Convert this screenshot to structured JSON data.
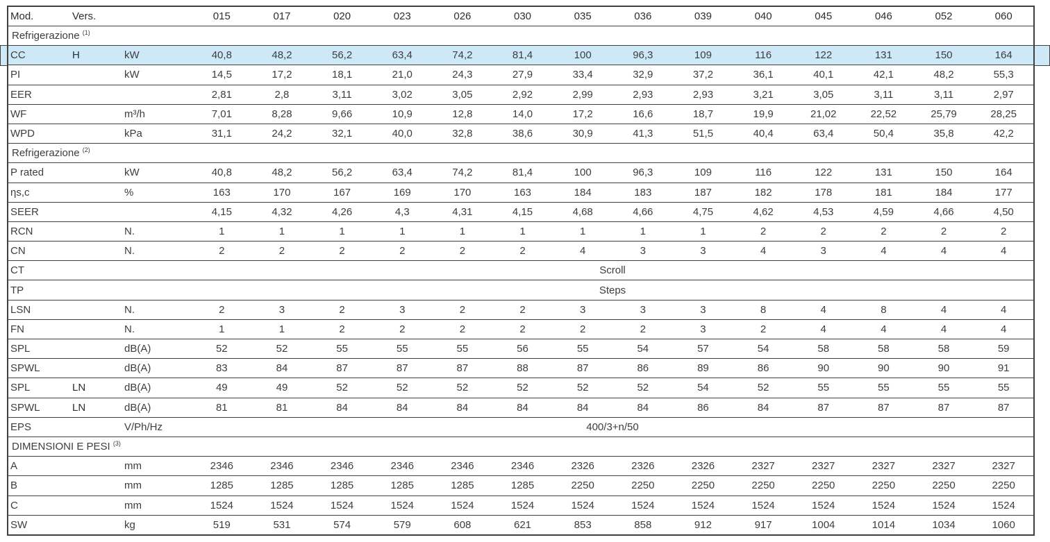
{
  "colors": {
    "highlight_row": "#cde9f8",
    "border": "#3f3f3f",
    "text": "#3d3d3d"
  },
  "table": {
    "header": {
      "mod": "Mod.",
      "vers": "Vers.",
      "unit": ""
    },
    "columns": [
      "015",
      "017",
      "020",
      "023",
      "026",
      "030",
      "035",
      "036",
      "039",
      "040",
      "045",
      "046",
      "052",
      "060"
    ],
    "rows": [
      {
        "type": "section",
        "label": "Refrigerazione",
        "sup": "(1)"
      },
      {
        "type": "data",
        "label": "CC",
        "vers": "H",
        "unit": "kW",
        "highlight": true,
        "values": [
          "40,8",
          "48,2",
          "56,2",
          "63,4",
          "74,2",
          "81,4",
          "100",
          "96,3",
          "109",
          "116",
          "122",
          "131",
          "150",
          "164"
        ]
      },
      {
        "type": "data",
        "label": "PI",
        "vers": "",
        "unit": "kW",
        "values": [
          "14,5",
          "17,2",
          "18,1",
          "21,0",
          "24,3",
          "27,9",
          "33,4",
          "32,9",
          "37,2",
          "36,1",
          "40,1",
          "42,1",
          "48,2",
          "55,3"
        ]
      },
      {
        "type": "data",
        "label": "EER",
        "vers": "",
        "unit": "",
        "values": [
          "2,81",
          "2,8",
          "3,11",
          "3,02",
          "3,05",
          "2,92",
          "2,99",
          "2,93",
          "2,93",
          "3,21",
          "3,05",
          "3,11",
          "3,11",
          "2,97"
        ]
      },
      {
        "type": "data",
        "label": "WF",
        "vers": "",
        "unit": "m³/h",
        "values": [
          "7,01",
          "8,28",
          "9,66",
          "10,9",
          "12,8",
          "14,0",
          "17,2",
          "16,6",
          "18,7",
          "19,9",
          "21,02",
          "22,52",
          "25,79",
          "28,25"
        ]
      },
      {
        "type": "data",
        "label": "WPD",
        "vers": "",
        "unit": "kPa",
        "values": [
          "31,1",
          "24,2",
          "32,1",
          "40,0",
          "32,8",
          "38,6",
          "30,9",
          "41,3",
          "51,5",
          "40,4",
          "63,4",
          "50,4",
          "35,8",
          "42,2"
        ]
      },
      {
        "type": "section",
        "label": "Refrigerazione",
        "sup": "(2)"
      },
      {
        "type": "data",
        "label": "P rated",
        "vers": "",
        "unit": "kW",
        "values": [
          "40,8",
          "48,2",
          "56,2",
          "63,4",
          "74,2",
          "81,4",
          "100",
          "96,3",
          "109",
          "116",
          "122",
          "131",
          "150",
          "164"
        ]
      },
      {
        "type": "data",
        "label": "ηs,c",
        "vers": "",
        "unit": "%",
        "values": [
          "163",
          "170",
          "167",
          "169",
          "170",
          "163",
          "184",
          "183",
          "187",
          "182",
          "178",
          "181",
          "184",
          "177"
        ]
      },
      {
        "type": "data",
        "label": "SEER",
        "vers": "",
        "unit": "",
        "values": [
          "4,15",
          "4,32",
          "4,26",
          "4,3",
          "4,31",
          "4,15",
          "4,68",
          "4,66",
          "4,75",
          "4,62",
          "4,53",
          "4,59",
          "4,66",
          "4,50"
        ]
      },
      {
        "type": "data",
        "label": "RCN",
        "vers": "",
        "unit": "N.",
        "values": [
          "1",
          "1",
          "1",
          "1",
          "1",
          "1",
          "1",
          "1",
          "1",
          "2",
          "2",
          "2",
          "2",
          "2"
        ]
      },
      {
        "type": "data",
        "label": "CN",
        "vers": "",
        "unit": "N.",
        "values": [
          "2",
          "2",
          "2",
          "2",
          "2",
          "2",
          "4",
          "3",
          "3",
          "4",
          "3",
          "4",
          "4",
          "4"
        ]
      },
      {
        "type": "span",
        "label": "CT",
        "vers": "",
        "unit": "",
        "value": "Scroll"
      },
      {
        "type": "span",
        "label": "TP",
        "vers": "",
        "unit": "",
        "value": "Steps"
      },
      {
        "type": "data",
        "label": "LSN",
        "vers": "",
        "unit": "N.",
        "values": [
          "2",
          "3",
          "2",
          "3",
          "2",
          "2",
          "3",
          "3",
          "3",
          "8",
          "4",
          "8",
          "4",
          "4"
        ]
      },
      {
        "type": "data",
        "label": "FN",
        "vers": "",
        "unit": "N.",
        "values": [
          "1",
          "1",
          "2",
          "2",
          "2",
          "2",
          "2",
          "2",
          "3",
          "2",
          "4",
          "4",
          "4",
          "4"
        ]
      },
      {
        "type": "data",
        "label": "SPL",
        "vers": "",
        "unit": "dB(A)",
        "values": [
          "52",
          "52",
          "55",
          "55",
          "55",
          "56",
          "55",
          "54",
          "57",
          "54",
          "58",
          "58",
          "58",
          "59"
        ]
      },
      {
        "type": "data",
        "label": "SPWL",
        "vers": "",
        "unit": "dB(A)",
        "values": [
          "83",
          "84",
          "87",
          "87",
          "87",
          "88",
          "87",
          "86",
          "89",
          "86",
          "90",
          "90",
          "90",
          "91"
        ]
      },
      {
        "type": "data",
        "label": "SPL",
        "vers": "LN",
        "unit": "dB(A)",
        "values": [
          "49",
          "49",
          "52",
          "52",
          "52",
          "52",
          "52",
          "52",
          "54",
          "52",
          "55",
          "55",
          "55",
          "55"
        ]
      },
      {
        "type": "data",
        "label": "SPWL",
        "vers": "LN",
        "unit": "dB(A)",
        "values": [
          "81",
          "81",
          "84",
          "84",
          "84",
          "84",
          "84",
          "84",
          "86",
          "84",
          "87",
          "87",
          "87",
          "87"
        ]
      },
      {
        "type": "span",
        "label": "EPS",
        "vers": "",
        "unit": "V/Ph/Hz",
        "value": "400/3+n/50"
      },
      {
        "type": "section",
        "label": "DIMENSIONI E PESI",
        "sup": "(3)"
      },
      {
        "type": "data",
        "label": "A",
        "vers": "",
        "unit": "mm",
        "values": [
          "2346",
          "2346",
          "2346",
          "2346",
          "2346",
          "2346",
          "2326",
          "2326",
          "2326",
          "2327",
          "2327",
          "2327",
          "2327",
          "2327"
        ]
      },
      {
        "type": "data",
        "label": "B",
        "vers": "",
        "unit": "mm",
        "values": [
          "1285",
          "1285",
          "1285",
          "1285",
          "1285",
          "1285",
          "2250",
          "2250",
          "2250",
          "2250",
          "2250",
          "2250",
          "2250",
          "2250"
        ]
      },
      {
        "type": "data",
        "label": "C",
        "vers": "",
        "unit": "mm",
        "values": [
          "1524",
          "1524",
          "1524",
          "1524",
          "1524",
          "1524",
          "1524",
          "1524",
          "1524",
          "1524",
          "1524",
          "1524",
          "1524",
          "1524"
        ]
      },
      {
        "type": "data",
        "label": "SW",
        "vers": "",
        "unit": "kg",
        "values": [
          "519",
          "531",
          "574",
          "579",
          "608",
          "621",
          "853",
          "858",
          "912",
          "917",
          "1004",
          "1014",
          "1034",
          "1060"
        ]
      }
    ]
  }
}
